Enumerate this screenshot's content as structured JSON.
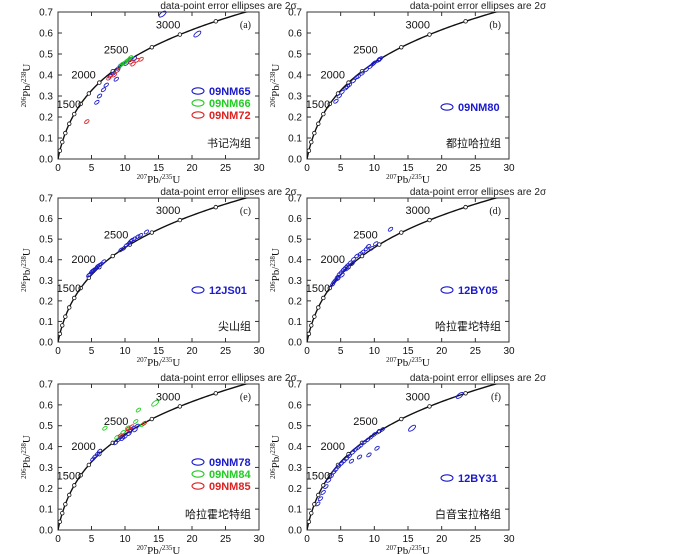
{
  "chart_data": [
    {
      "type": "scatter",
      "subtype": "u-pb-concordia",
      "panel_label": "(a)",
      "header_note": "data-point error ellipses are 2σ",
      "xlabel_num": "207",
      "xlabel_elem": "Pb/",
      "xlabel_den": "235",
      "xlabel_tail": "U",
      "ylabel_num": "206",
      "ylabel_elem": "Pb/",
      "ylabel_den": "238",
      "ylabel_tail": "U",
      "xlim": [
        0,
        30
      ],
      "ylim": [
        0,
        0.7
      ],
      "xticks": [
        "0",
        "5",
        "10",
        "15",
        "20",
        "25",
        "30"
      ],
      "yticks": [
        "0.0",
        "0.1",
        "0.2",
        "0.3",
        "0.4",
        "0.5",
        "0.6",
        "0.7"
      ],
      "age_labels": [
        "1500",
        "2000",
        "2500",
        "3000"
      ],
      "formation": "书记沟组",
      "legend": [
        {
          "name": "09NM65",
          "color": "#1a1acc"
        },
        {
          "name": "09NM66",
          "color": "#22cc22"
        },
        {
          "name": "09NM72",
          "color": "#dd2222"
        }
      ],
      "series": [
        {
          "name": "09NM65",
          "color": "#1a1acc",
          "points": [
            [
              15.6,
              0.69
            ],
            [
              20.8,
              0.595
            ],
            [
              10.8,
              0.472
            ],
            [
              11.4,
              0.478
            ],
            [
              9.6,
              0.452
            ],
            [
              9.0,
              0.432
            ],
            [
              8.3,
              0.408
            ],
            [
              10.2,
              0.455
            ],
            [
              7.8,
              0.395
            ],
            [
              8.7,
              0.38
            ],
            [
              7.2,
              0.352
            ],
            [
              6.2,
              0.3
            ],
            [
              6.8,
              0.33
            ],
            [
              5.8,
              0.27
            ],
            [
              9.3,
              0.445
            ]
          ]
        },
        {
          "name": "09NM66",
          "color": "#22cc22",
          "points": [
            [
              9.9,
              0.458
            ],
            [
              10.3,
              0.468
            ],
            [
              10.6,
              0.475
            ],
            [
              9.5,
              0.45
            ],
            [
              10.1,
              0.462
            ],
            [
              11.0,
              0.478
            ],
            [
              9.2,
              0.44
            ],
            [
              10.8,
              0.483
            ]
          ]
        },
        {
          "name": "09NM72",
          "color": "#dd2222",
          "points": [
            [
              11.8,
              0.47
            ],
            [
              12.4,
              0.475
            ],
            [
              10.9,
              0.462
            ],
            [
              8.4,
              0.4
            ],
            [
              7.6,
              0.385
            ],
            [
              8.9,
              0.422
            ],
            [
              4.3,
              0.178
            ],
            [
              11.2,
              0.452
            ]
          ]
        }
      ]
    },
    {
      "type": "scatter",
      "subtype": "u-pb-concordia",
      "panel_label": "(b)",
      "header_note": "data-point error ellipses are 2σ",
      "xlabel_num": "207",
      "xlabel_elem": "Pb/",
      "xlabel_den": "235",
      "xlabel_tail": "U",
      "ylabel_num": "206",
      "ylabel_elem": "Pb/",
      "ylabel_den": "238",
      "ylabel_tail": "U",
      "xlim": [
        0,
        30
      ],
      "ylim": [
        0,
        0.7
      ],
      "xticks": [
        "0",
        "5",
        "10",
        "15",
        "20",
        "25",
        "30"
      ],
      "yticks": [
        "0.0",
        "0.1",
        "0.2",
        "0.3",
        "0.4",
        "0.5",
        "0.6",
        "0.7"
      ],
      "age_labels": [
        "1500",
        "2000",
        "2500",
        "3000"
      ],
      "formation": "都拉哈拉组",
      "legend": [
        {
          "name": "09NM80",
          "color": "#1a1acc"
        }
      ],
      "series": [
        {
          "name": "09NM80",
          "color": "#1a1acc",
          "points": [
            [
              10.6,
              0.47
            ],
            [
              10.0,
              0.458
            ],
            [
              9.4,
              0.44
            ],
            [
              8.8,
              0.425
            ],
            [
              8.2,
              0.408
            ],
            [
              7.6,
              0.392
            ],
            [
              6.9,
              0.372
            ],
            [
              6.3,
              0.352
            ],
            [
              5.8,
              0.338
            ],
            [
              5.2,
              0.318
            ],
            [
              4.8,
              0.3
            ],
            [
              4.3,
              0.275
            ],
            [
              9.8,
              0.452
            ],
            [
              7.3,
              0.388
            ],
            [
              10.9,
              0.478
            ],
            [
              6.0,
              0.345
            ]
          ]
        }
      ]
    },
    {
      "type": "scatter",
      "subtype": "u-pb-concordia",
      "panel_label": "(c)",
      "header_note": "data-point error ellipses are 2σ",
      "xlabel_num": "207",
      "xlabel_elem": "Pb/",
      "xlabel_den": "235",
      "xlabel_tail": "U",
      "ylabel_num": "206",
      "ylabel_elem": "Pb/",
      "ylabel_den": "238",
      "ylabel_tail": "U",
      "xlim": [
        0,
        30
      ],
      "ylim": [
        0,
        0.7
      ],
      "xticks": [
        "0",
        "5",
        "10",
        "15",
        "20",
        "25",
        "30"
      ],
      "yticks": [
        "0.0",
        "0.1",
        "0.2",
        "0.3",
        "0.4",
        "0.5",
        "0.6",
        "0.7"
      ],
      "age_labels": [
        "1500",
        "2000",
        "2500",
        "3000"
      ],
      "formation": "尖山组",
      "legend": [
        {
          "name": "12JS01",
          "color": "#1a1acc"
        }
      ],
      "series": [
        {
          "name": "12JS01",
          "color": "#1a1acc",
          "points": [
            [
              13.2,
              0.535
            ],
            [
              11.9,
              0.512
            ],
            [
              11.0,
              0.495
            ],
            [
              10.6,
              0.48
            ],
            [
              10.2,
              0.47
            ],
            [
              9.8,
              0.455
            ],
            [
              9.4,
              0.448
            ],
            [
              6.1,
              0.372
            ],
            [
              5.8,
              0.36
            ],
            [
              5.6,
              0.355
            ],
            [
              5.3,
              0.348
            ],
            [
              5.0,
              0.34
            ],
            [
              4.8,
              0.33
            ],
            [
              6.4,
              0.378
            ],
            [
              5.4,
              0.352
            ],
            [
              4.6,
              0.325
            ],
            [
              11.4,
              0.502
            ],
            [
              12.3,
              0.518
            ],
            [
              6.8,
              0.39
            ],
            [
              5.1,
              0.345
            ],
            [
              5.9,
              0.368
            ],
            [
              10.8,
              0.488
            ]
          ]
        }
      ]
    },
    {
      "type": "scatter",
      "subtype": "u-pb-concordia",
      "panel_label": "(d)",
      "header_note": "data-point error ellipses are 2σ",
      "xlabel_num": "207",
      "xlabel_elem": "Pb/",
      "xlabel_den": "235",
      "xlabel_tail": "U",
      "ylabel_num": "206",
      "ylabel_elem": "Pb/",
      "ylabel_den": "238",
      "ylabel_tail": "U",
      "xlim": [
        0,
        30
      ],
      "ylim": [
        0,
        0.7
      ],
      "xticks": [
        "0",
        "5",
        "10",
        "15",
        "20",
        "25",
        "30"
      ],
      "yticks": [
        "0.0",
        "0.1",
        "0.2",
        "0.3",
        "0.4",
        "0.5",
        "0.6",
        "0.7"
      ],
      "age_labels": [
        "1500",
        "2000",
        "2500",
        "3000"
      ],
      "formation": "哈拉霍坨特组",
      "legend": [
        {
          "name": "12BY05",
          "color": "#1a1acc"
        }
      ],
      "series": [
        {
          "name": "12BY05",
          "color": "#1a1acc",
          "points": [
            [
              12.4,
              0.548
            ],
            [
              10.2,
              0.478
            ],
            [
              9.1,
              0.465
            ],
            [
              8.8,
              0.452
            ],
            [
              8.3,
              0.438
            ],
            [
              7.9,
              0.428
            ],
            [
              7.4,
              0.418
            ],
            [
              6.9,
              0.402
            ],
            [
              6.4,
              0.385
            ],
            [
              6.0,
              0.372
            ],
            [
              5.7,
              0.362
            ],
            [
              5.4,
              0.352
            ],
            [
              5.1,
              0.34
            ],
            [
              4.8,
              0.33
            ],
            [
              4.5,
              0.315
            ],
            [
              4.2,
              0.3
            ],
            [
              4.0,
              0.292
            ],
            [
              3.8,
              0.28
            ],
            [
              9.6,
              0.455
            ],
            [
              6.7,
              0.38
            ],
            [
              5.9,
              0.355
            ],
            [
              5.2,
              0.325
            ],
            [
              4.6,
              0.308
            ]
          ]
        }
      ]
    },
    {
      "type": "scatter",
      "subtype": "u-pb-concordia",
      "panel_label": "(e)",
      "header_note": "data-point error ellipses are 2σ",
      "xlabel_num": "207",
      "xlabel_elem": "Pb/",
      "xlabel_den": "235",
      "xlabel_tail": "U",
      "ylabel_num": "206",
      "ylabel_elem": "Pb/",
      "ylabel_den": "238",
      "ylabel_tail": "U",
      "xlim": [
        0,
        30
      ],
      "ylim": [
        0,
        0.7
      ],
      "xticks": [
        "0",
        "5",
        "10",
        "15",
        "20",
        "25",
        "30"
      ],
      "yticks": [
        "0.0",
        "0.1",
        "0.2",
        "0.3",
        "0.4",
        "0.5",
        "0.6",
        "0.7"
      ],
      "age_labels": [
        "1500",
        "2000",
        "2500",
        "3000"
      ],
      "formation": "哈拉霍坨特组",
      "legend": [
        {
          "name": "09NM78",
          "color": "#1a1acc"
        },
        {
          "name": "09NM84",
          "color": "#22cc22"
        },
        {
          "name": "09NM85",
          "color": "#dd2222"
        }
      ],
      "series": [
        {
          "name": "09NM78",
          "color": "#1a1acc",
          "points": [
            [
              11.8,
              0.498
            ],
            [
              11.2,
              0.488
            ],
            [
              10.8,
              0.478
            ],
            [
              10.3,
              0.47
            ],
            [
              9.8,
              0.455
            ],
            [
              9.4,
              0.445
            ],
            [
              9.0,
              0.432
            ],
            [
              8.6,
              0.418
            ],
            [
              10.0,
              0.448
            ],
            [
              6.2,
              0.378
            ],
            [
              5.9,
              0.365
            ],
            [
              5.5,
              0.352
            ],
            [
              5.2,
              0.34
            ],
            [
              10.6,
              0.462
            ],
            [
              11.5,
              0.48
            ],
            [
              9.6,
              0.438
            ]
          ]
        },
        {
          "name": "09NM84",
          "color": "#22cc22",
          "points": [
            [
              14.5,
              0.608
            ],
            [
              12.0,
              0.575
            ],
            [
              11.6,
              0.52
            ],
            [
              10.4,
              0.49
            ],
            [
              9.7,
              0.468
            ],
            [
              7.0,
              0.488
            ],
            [
              8.8,
              0.445
            ],
            [
              12.6,
              0.505
            ]
          ]
        },
        {
          "name": "09NM85",
          "color": "#dd2222",
          "points": [
            [
              12.9,
              0.512
            ],
            [
              11.0,
              0.495
            ],
            [
              10.5,
              0.485
            ],
            [
              9.3,
              0.452
            ]
          ]
        }
      ]
    },
    {
      "type": "scatter",
      "subtype": "u-pb-concordia",
      "panel_label": "(f)",
      "header_note": "data-point error ellipses are 2σ",
      "xlabel_num": "207",
      "xlabel_elem": "Pb/",
      "xlabel_den": "235",
      "xlabel_tail": "U",
      "ylabel_num": "206",
      "ylabel_elem": "Pb/",
      "ylabel_den": "238",
      "ylabel_tail": "U",
      "xlim": [
        0,
        30
      ],
      "ylim": [
        0,
        0.7
      ],
      "xticks": [
        "0",
        "5",
        "10",
        "15",
        "20",
        "25",
        "30"
      ],
      "yticks": [
        "0.0",
        "0.1",
        "0.2",
        "0.3",
        "0.4",
        "0.5",
        "0.6",
        "0.7"
      ],
      "age_labels": [
        "1500",
        "2000",
        "2500",
        "3000"
      ],
      "formation": "白音宝拉格组",
      "legend": [
        {
          "name": "12BY31",
          "color": "#1a1acc"
        }
      ],
      "series": [
        {
          "name": "12BY31",
          "color": "#1a1acc",
          "points": [
            [
              22.7,
              0.645
            ],
            [
              15.6,
              0.488
            ],
            [
              11.2,
              0.482
            ],
            [
              10.6,
              0.47
            ],
            [
              10.0,
              0.458
            ],
            [
              9.5,
              0.445
            ],
            [
              9.0,
              0.432
            ],
            [
              8.5,
              0.42
            ],
            [
              8.0,
              0.405
            ],
            [
              7.6,
              0.395
            ],
            [
              7.2,
              0.385
            ],
            [
              6.8,
              0.372
            ],
            [
              6.3,
              0.355
            ],
            [
              5.9,
              0.342
            ],
            [
              5.5,
              0.33
            ],
            [
              5.1,
              0.318
            ],
            [
              4.7,
              0.305
            ],
            [
              4.3,
              0.29
            ],
            [
              4.0,
              0.278
            ],
            [
              3.6,
              0.258
            ],
            [
              3.2,
              0.238
            ],
            [
              2.8,
              0.208
            ],
            [
              2.4,
              0.18
            ],
            [
              2.0,
              0.15
            ],
            [
              1.6,
              0.125
            ],
            [
              10.4,
              0.392
            ],
            [
              9.2,
              0.36
            ],
            [
              6.6,
              0.33
            ],
            [
              7.8,
              0.35
            ]
          ]
        }
      ]
    }
  ]
}
